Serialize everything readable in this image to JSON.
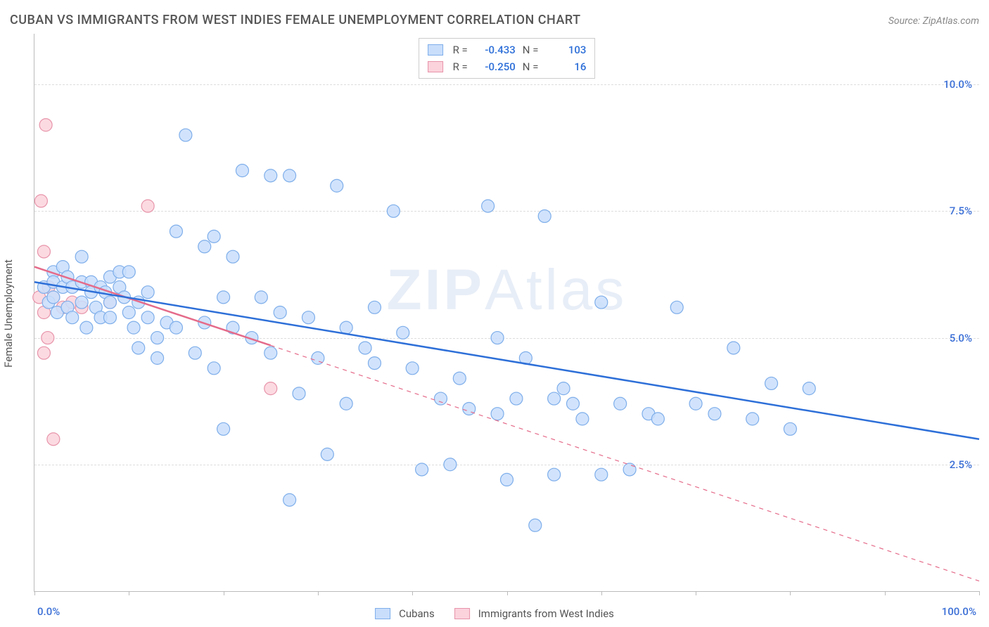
{
  "title": "CUBAN VS IMMIGRANTS FROM WEST INDIES FEMALE UNEMPLOYMENT CORRELATION CHART",
  "source_label": "Source: ",
  "source_name": "ZipAtlas.com",
  "watermark_a": "ZIP",
  "watermark_b": "Atlas",
  "y_axis_label": "Female Unemployment",
  "chart": {
    "type": "scatter",
    "xlim": [
      0,
      100
    ],
    "ylim": [
      0,
      11
    ],
    "x_ticks": [
      0,
      10,
      20,
      30,
      40,
      50,
      60,
      70,
      80,
      90,
      100
    ],
    "x_tick_labels": {
      "0": "0.0%",
      "100": "100.0%"
    },
    "y_ticks": [
      2.5,
      5.0,
      7.5,
      10.0
    ],
    "y_tick_labels": [
      "2.5%",
      "5.0%",
      "7.5%",
      "10.0%"
    ],
    "grid_color": "#dddddd",
    "border_color": "#bbbbbb",
    "background_color": "#ffffff",
    "marker_radius": 9,
    "marker_stroke_width": 1.2,
    "line_stroke_width": 2.5,
    "series": [
      {
        "name": "Cubans",
        "fill": "#c9defb",
        "stroke": "#7eaeea",
        "line_color": "#2d6fd8",
        "R": "-0.433",
        "N": "103",
        "trend": {
          "x1": 0,
          "y1": 6.1,
          "x2": 100,
          "y2": 3.0,
          "solid_until_x": 100
        },
        "points": [
          [
            1,
            6.0
          ],
          [
            1.5,
            5.7
          ],
          [
            2,
            6.3
          ],
          [
            2,
            5.8
          ],
          [
            2,
            6.1
          ],
          [
            2.4,
            5.5
          ],
          [
            3,
            6.4
          ],
          [
            3,
            6.0
          ],
          [
            3.5,
            6.2
          ],
          [
            3.5,
            5.6
          ],
          [
            4,
            6.0
          ],
          [
            4,
            5.4
          ],
          [
            5,
            6.6
          ],
          [
            5,
            6.1
          ],
          [
            5,
            5.7
          ],
          [
            5.5,
            5.2
          ],
          [
            6,
            6.1
          ],
          [
            6,
            5.9
          ],
          [
            6.5,
            5.6
          ],
          [
            7,
            6.0
          ],
          [
            7,
            5.4
          ],
          [
            7.5,
            5.9
          ],
          [
            8,
            6.2
          ],
          [
            8,
            5.7
          ],
          [
            8,
            5.4
          ],
          [
            9,
            6.3
          ],
          [
            9,
            6.0
          ],
          [
            9.5,
            5.8
          ],
          [
            10,
            5.5
          ],
          [
            10,
            6.3
          ],
          [
            10.5,
            5.2
          ],
          [
            11,
            5.7
          ],
          [
            11,
            4.8
          ],
          [
            12,
            5.4
          ],
          [
            12,
            5.9
          ],
          [
            13,
            5.0
          ],
          [
            13,
            4.6
          ],
          [
            14,
            5.3
          ],
          [
            15,
            7.1
          ],
          [
            15,
            5.2
          ],
          [
            16,
            9.0
          ],
          [
            17,
            4.7
          ],
          [
            18,
            5.3
          ],
          [
            18,
            6.8
          ],
          [
            19,
            7.0
          ],
          [
            19,
            4.4
          ],
          [
            20,
            5.8
          ],
          [
            20,
            3.2
          ],
          [
            21,
            5.2
          ],
          [
            21,
            6.6
          ],
          [
            22,
            8.3
          ],
          [
            23,
            5.0
          ],
          [
            24,
            5.8
          ],
          [
            25,
            4.7
          ],
          [
            25,
            8.2
          ],
          [
            26,
            5.5
          ],
          [
            27,
            8.2
          ],
          [
            27,
            1.8
          ],
          [
            28,
            3.9
          ],
          [
            29,
            5.4
          ],
          [
            30,
            4.6
          ],
          [
            31,
            2.7
          ],
          [
            32,
            8.0
          ],
          [
            33,
            5.2
          ],
          [
            33,
            3.7
          ],
          [
            35,
            4.8
          ],
          [
            36,
            4.5
          ],
          [
            36,
            5.6
          ],
          [
            38,
            7.5
          ],
          [
            39,
            5.1
          ],
          [
            40,
            4.4
          ],
          [
            41,
            2.4
          ],
          [
            43,
            3.8
          ],
          [
            44,
            2.5
          ],
          [
            45,
            4.2
          ],
          [
            46,
            3.6
          ],
          [
            48,
            7.6
          ],
          [
            49,
            3.5
          ],
          [
            49,
            5.0
          ],
          [
            50,
            2.2
          ],
          [
            51,
            3.8
          ],
          [
            52,
            4.6
          ],
          [
            53,
            1.3
          ],
          [
            54,
            7.4
          ],
          [
            55,
            3.8
          ],
          [
            55,
            2.3
          ],
          [
            56,
            4.0
          ],
          [
            57,
            3.7
          ],
          [
            58,
            3.4
          ],
          [
            60,
            2.3
          ],
          [
            60,
            5.7
          ],
          [
            62,
            3.7
          ],
          [
            63,
            2.4
          ],
          [
            65,
            3.5
          ],
          [
            66,
            3.4
          ],
          [
            68,
            5.6
          ],
          [
            70,
            3.7
          ],
          [
            72,
            3.5
          ],
          [
            74,
            4.8
          ],
          [
            76,
            3.4
          ],
          [
            78,
            4.1
          ],
          [
            80,
            3.2
          ],
          [
            82,
            4.0
          ]
        ]
      },
      {
        "name": "Immigrants from West Indies",
        "fill": "#fbd3dd",
        "stroke": "#e794aa",
        "line_color": "#e56b8a",
        "R": "-0.250",
        "N": "16",
        "trend": {
          "x1": 0,
          "y1": 6.4,
          "x2": 100,
          "y2": 0.2,
          "solid_until_x": 25
        },
        "points": [
          [
            0.5,
            5.8
          ],
          [
            0.7,
            7.7
          ],
          [
            1,
            6.7
          ],
          [
            1,
            5.5
          ],
          [
            1.2,
            9.2
          ],
          [
            1,
            4.7
          ],
          [
            1.4,
            5.0
          ],
          [
            1.5,
            6.0
          ],
          [
            2,
            5.8
          ],
          [
            2,
            3.0
          ],
          [
            3,
            5.6
          ],
          [
            4,
            5.7
          ],
          [
            5,
            5.6
          ],
          [
            8,
            5.7
          ],
          [
            12,
            7.6
          ],
          [
            25,
            4.0
          ]
        ]
      }
    ]
  },
  "legend_bottom": {
    "series1_label": "Cubans",
    "series2_label": "Immigrants from West Indies"
  },
  "legend_top": {
    "r_label": "R =",
    "n_label": "N ="
  }
}
